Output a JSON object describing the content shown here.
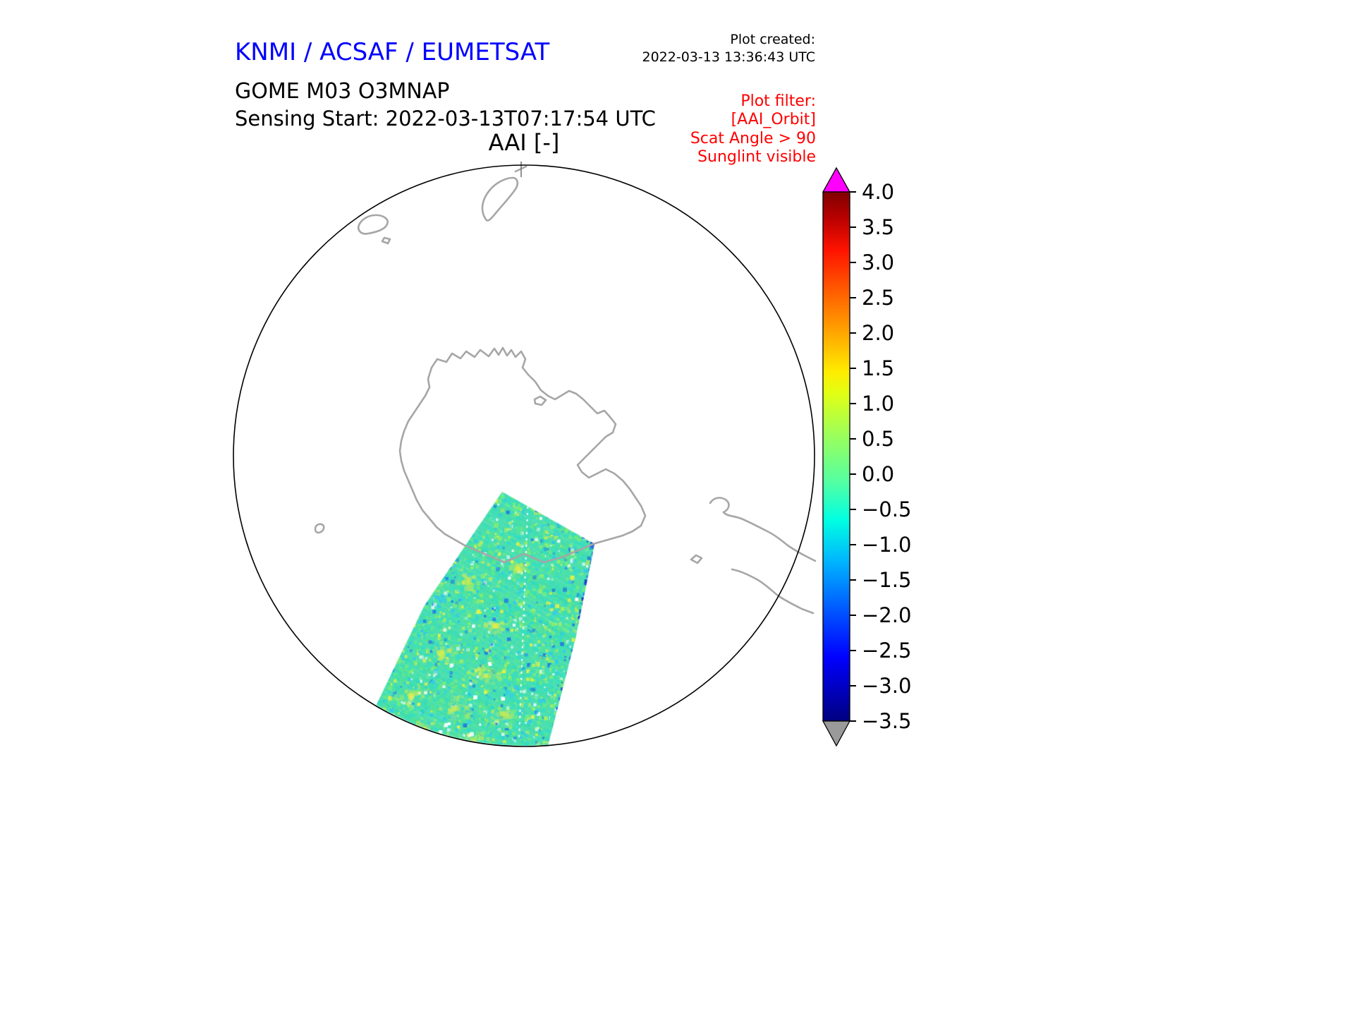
{
  "header": {
    "agency_title": "KNMI / ACSAF / EUMETSAT",
    "product_title": "GOME M03 O3MNAP",
    "sensing_start": "Sensing Start: 2022-03-13T07:17:54 UTC",
    "map_title": "AAI [-]",
    "plot_created_label": "Plot created:",
    "plot_created_value": "2022-03-13 13:36:43 UTC",
    "plot_filter_label": "Plot filter:",
    "plot_filter_lines": [
      "[AAI_Orbit]",
      "Scat Angle > 90",
      "Sunglint visible"
    ]
  },
  "colors": {
    "title_blue": "#0000ff",
    "filter_red": "#ff0000",
    "coastline_gray": "#a6a6a6",
    "colorbar_over": "#ff00ff",
    "colorbar_under": "#9a9a9a"
  },
  "chart_data": {
    "type": "heatmap",
    "title": "AAI [-]",
    "projection": "south polar stereographic (Antarctica)",
    "instrument": "GOME M03 O3MNAP",
    "sensing_start_utc": "2022-03-13T07:17:54 UTC",
    "plot_created_utc": "2022-03-13 13:36:43 UTC",
    "filters": [
      "[AAI_Orbit]",
      "Scat Angle > 90",
      "Sunglint visible"
    ],
    "colorbar": {
      "label": "AAI [-]",
      "colormap": "jet",
      "vmin": -3.5,
      "vmax": 4.0,
      "tick_step": 0.5,
      "ticks": [
        "4.0",
        "3.5",
        "3.0",
        "2.5",
        "2.0",
        "1.5",
        "1.0",
        "0.5",
        "0.0",
        "−0.5",
        "−1.0",
        "−1.5",
        "−2.0",
        "−2.5",
        "−3.0",
        "−3.5"
      ],
      "over_arrow_color": "#ff00ff",
      "under_arrow_color": "#9a9a9a"
    },
    "swath": {
      "description": "Single GOME-2 (Metop-C) orbit swath of Absorbing Aerosol Index crossing from the lower-left limb of the polar view up across the Antarctic coastline",
      "typical_values_range": [
        -1.0,
        1.0
      ],
      "features": [
        "mostly teal-green values near 0",
        "yellow patches near +1 in lower part",
        "dark blue streak near −2.5 along upper-right swath edge",
        "white dashed nadir gap line along track"
      ]
    }
  }
}
